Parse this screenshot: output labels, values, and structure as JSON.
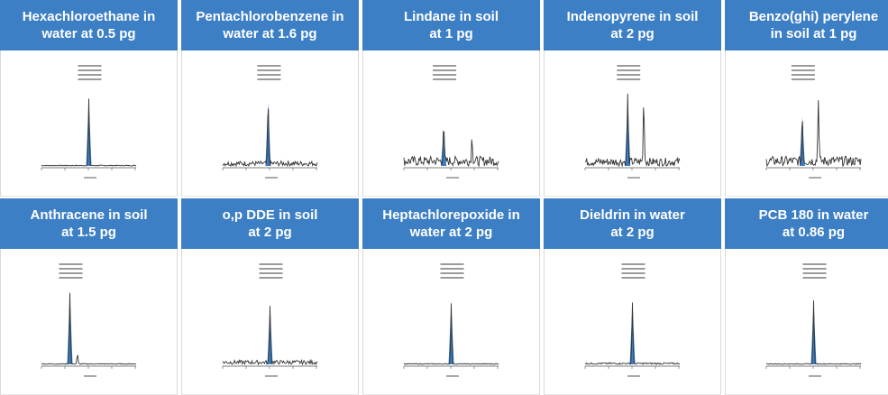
{
  "panels": [
    {
      "title": [
        "Hexachloroethane in",
        "water at 0.5 pg"
      ]
    },
    {
      "title": [
        "Pentachlorobenzene in",
        "water at 1.6 pg"
      ]
    },
    {
      "title": [
        "Lindane in soil",
        "at 1 pg"
      ]
    },
    {
      "title": [
        "Indenopyrene in soil",
        "at 2 pg"
      ]
    },
    {
      "title": [
        "Benzo(ghi) perylene",
        "in soil at 1 pg"
      ]
    },
    {
      "title": [
        "Anthracene in soil",
        "at 1.5 pg"
      ]
    },
    {
      "title": [
        "o,p DDE in soil",
        "at 2 pg"
      ]
    },
    {
      "title": [
        "Heptachlorepoxide in",
        "water at 2 pg"
      ]
    },
    {
      "title": [
        "Dieldrin in water",
        "at 2 pg"
      ]
    },
    {
      "title": [
        "PCB 180 in water",
        "at 0.86 pg"
      ]
    }
  ]
}
